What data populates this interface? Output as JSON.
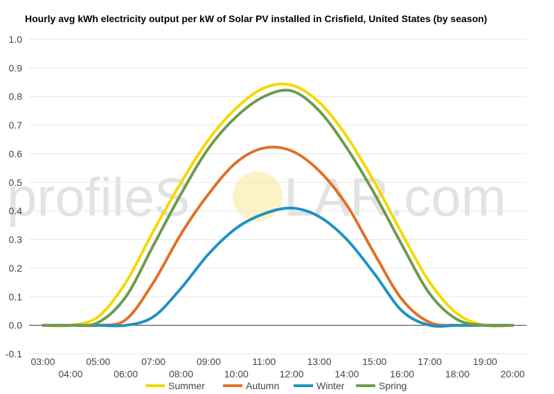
{
  "chart_data": {
    "type": "line",
    "title": "Hourly avg kWh electricity output per kW of Solar PV installed in Crisfield, United States (by season)",
    "xlabel": "",
    "ylabel": "",
    "ylim": [
      -0.1,
      1.0
    ],
    "yticks": [
      "-0.1",
      "0.0",
      "0.1",
      "0.2",
      "0.3",
      "0.4",
      "0.5",
      "0.6",
      "0.7",
      "0.8",
      "0.9",
      "1.0"
    ],
    "x": [
      "03:00",
      "04:00",
      "05:00",
      "06:00",
      "07:00",
      "08:00",
      "09:00",
      "10:00",
      "11:00",
      "12:00",
      "13:00",
      "14:00",
      "15:00",
      "16:00",
      "17:00",
      "18:00",
      "19:00",
      "20:00"
    ],
    "grid": true,
    "legend_position": "bottom",
    "series": [
      {
        "name": "Summer",
        "color": "#f5d800",
        "values": [
          0.0,
          0.0,
          0.03,
          0.15,
          0.33,
          0.5,
          0.65,
          0.76,
          0.83,
          0.84,
          0.78,
          0.66,
          0.5,
          0.32,
          0.15,
          0.04,
          0.0,
          0.0
        ]
      },
      {
        "name": "Autumn",
        "color": "#e07026",
        "values": [
          0.0,
          0.0,
          0.0,
          0.02,
          0.15,
          0.32,
          0.46,
          0.57,
          0.62,
          0.61,
          0.54,
          0.42,
          0.25,
          0.09,
          0.01,
          0.0,
          0.0,
          0.0
        ]
      },
      {
        "name": "Winter",
        "color": "#1f92c3",
        "values": [
          0.0,
          0.0,
          0.0,
          0.0,
          0.03,
          0.13,
          0.25,
          0.34,
          0.39,
          0.41,
          0.38,
          0.3,
          0.18,
          0.05,
          0.0,
          0.0,
          0.0,
          0.0
        ]
      },
      {
        "name": "Spring",
        "color": "#6d9a4f",
        "values": [
          0.0,
          0.0,
          0.01,
          0.1,
          0.28,
          0.46,
          0.62,
          0.73,
          0.8,
          0.82,
          0.75,
          0.62,
          0.46,
          0.28,
          0.11,
          0.02,
          0.0,
          0.0
        ]
      }
    ]
  },
  "watermark": {
    "prefix": "profileS",
    "suffix": "LAR.com",
    "sun_color": "#fce8a0",
    "text_color": "#e2e2e2"
  }
}
